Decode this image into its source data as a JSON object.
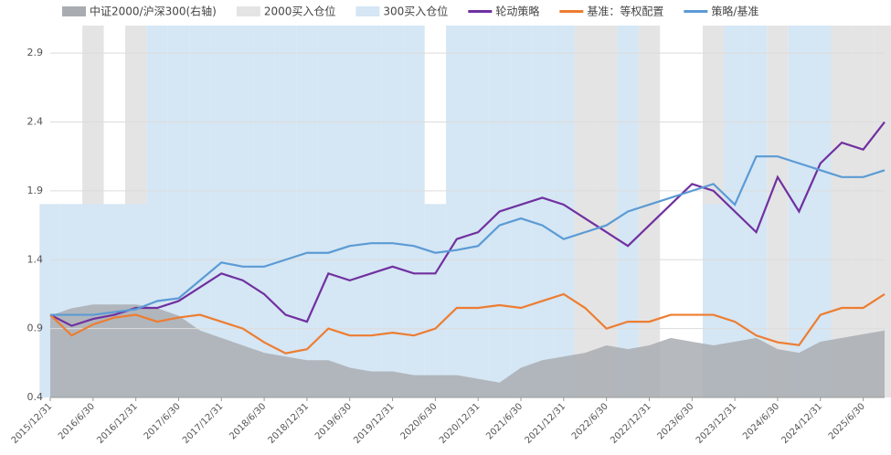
{
  "chart_data": {
    "type": "line",
    "categories": [
      "2015/12/31",
      null,
      "2016/6/30",
      null,
      "2016/12/31",
      null,
      "2017/6/30",
      null,
      "2017/12/31",
      null,
      "2018/6/30",
      null,
      "2018/12/31",
      null,
      "2019/6/30",
      null,
      "2019/12/31",
      null,
      "2020/6/30",
      null,
      "2020/12/31",
      null,
      "2021/6/30",
      null,
      "2021/12/31",
      null,
      "2022/6/30",
      null,
      "2022/12/31",
      null,
      "2023/6/30",
      null,
      "2023/12/31",
      null,
      "2024/6/30",
      null,
      "2024/12/31",
      null,
      "2025/6/30",
      null
    ],
    "ylim": [
      0.4,
      3.1
    ],
    "yticks": [
      0.4,
      0.9,
      1.4,
      1.9,
      2.4,
      2.9
    ],
    "y2lim": [
      0,
      1
    ],
    "grid": true,
    "legend": "top",
    "series": [
      {
        "name": "中证2000/沪深300(右轴)",
        "color": "#a9adb1",
        "kind": "area",
        "axis": "y2",
        "values": [
          0.22,
          0.24,
          0.25,
          0.25,
          0.25,
          0.24,
          0.22,
          0.18,
          0.16,
          0.14,
          0.12,
          0.11,
          0.1,
          0.1,
          0.08,
          0.07,
          0.07,
          0.06,
          0.06,
          0.06,
          0.05,
          0.04,
          0.08,
          0.1,
          0.11,
          0.12,
          0.14,
          0.13,
          0.14,
          0.16,
          0.15,
          0.14,
          0.15,
          0.16,
          0.13,
          0.12,
          0.15,
          0.16,
          0.17,
          0.18
        ]
      },
      {
        "name": "2000买入仓位",
        "color": "#e4e4e4",
        "kind": "bar",
        "axis": "y2",
        "values": [
          0,
          0,
          1,
          0,
          1,
          0,
          0,
          0,
          0,
          0,
          0,
          0,
          0,
          0,
          0,
          0,
          0,
          0,
          0,
          0,
          0,
          0,
          0,
          0,
          0,
          1,
          1,
          0,
          1,
          0,
          0,
          1,
          0,
          0,
          1,
          0,
          0,
          1,
          1,
          1
        ]
      },
      {
        "name": "300买入仓位",
        "color": "#d5e6f4",
        "kind": "bar",
        "axis": "y2",
        "values": [
          0.52,
          0.52,
          0.52,
          0.52,
          0.52,
          1,
          1,
          1,
          1,
          1,
          1,
          1,
          1,
          1,
          1,
          1,
          1,
          1,
          0.52,
          1,
          1,
          1,
          1,
          1,
          1,
          0,
          0,
          1,
          0,
          0,
          0,
          0.52,
          1,
          1,
          0,
          1,
          1,
          0,
          0,
          0
        ]
      },
      {
        "name": "轮动策略",
        "color": "#7030a0",
        "kind": "line",
        "values": [
          1.0,
          0.92,
          0.97,
          1.0,
          1.05,
          1.05,
          1.1,
          1.2,
          1.3,
          1.25,
          1.15,
          1.0,
          0.95,
          1.3,
          1.25,
          1.3,
          1.35,
          1.3,
          1.3,
          1.55,
          1.6,
          1.75,
          1.8,
          1.85,
          1.8,
          1.7,
          1.6,
          1.5,
          1.65,
          1.8,
          1.95,
          1.9,
          1.75,
          1.6,
          2.0,
          1.75,
          2.1,
          2.25,
          2.2,
          2.4
        ]
      },
      {
        "name": "基准：等权配置",
        "color": "#ed7d31",
        "kind": "line",
        "values": [
          1.0,
          0.85,
          0.93,
          0.98,
          1.0,
          0.95,
          0.98,
          1.0,
          0.95,
          0.9,
          0.8,
          0.72,
          0.75,
          0.9,
          0.85,
          0.85,
          0.87,
          0.85,
          0.9,
          1.05,
          1.05,
          1.07,
          1.05,
          1.1,
          1.15,
          1.05,
          0.9,
          0.95,
          0.95,
          1.0,
          1.0,
          1.0,
          0.95,
          0.85,
          0.8,
          0.78,
          1.0,
          1.05,
          1.05,
          1.15
        ]
      },
      {
        "name": "策略/基准",
        "color": "#5b9bd5",
        "kind": "line",
        "values": [
          1.0,
          1.0,
          1.0,
          1.02,
          1.04,
          1.1,
          1.12,
          1.25,
          1.38,
          1.35,
          1.35,
          1.4,
          1.45,
          1.45,
          1.5,
          1.52,
          1.52,
          1.5,
          1.45,
          1.47,
          1.5,
          1.65,
          1.7,
          1.65,
          1.55,
          1.6,
          1.65,
          1.75,
          1.8,
          1.85,
          1.9,
          1.95,
          1.8,
          2.15,
          2.15,
          2.1,
          2.05,
          2.0,
          2.0,
          2.05
        ]
      }
    ]
  }
}
